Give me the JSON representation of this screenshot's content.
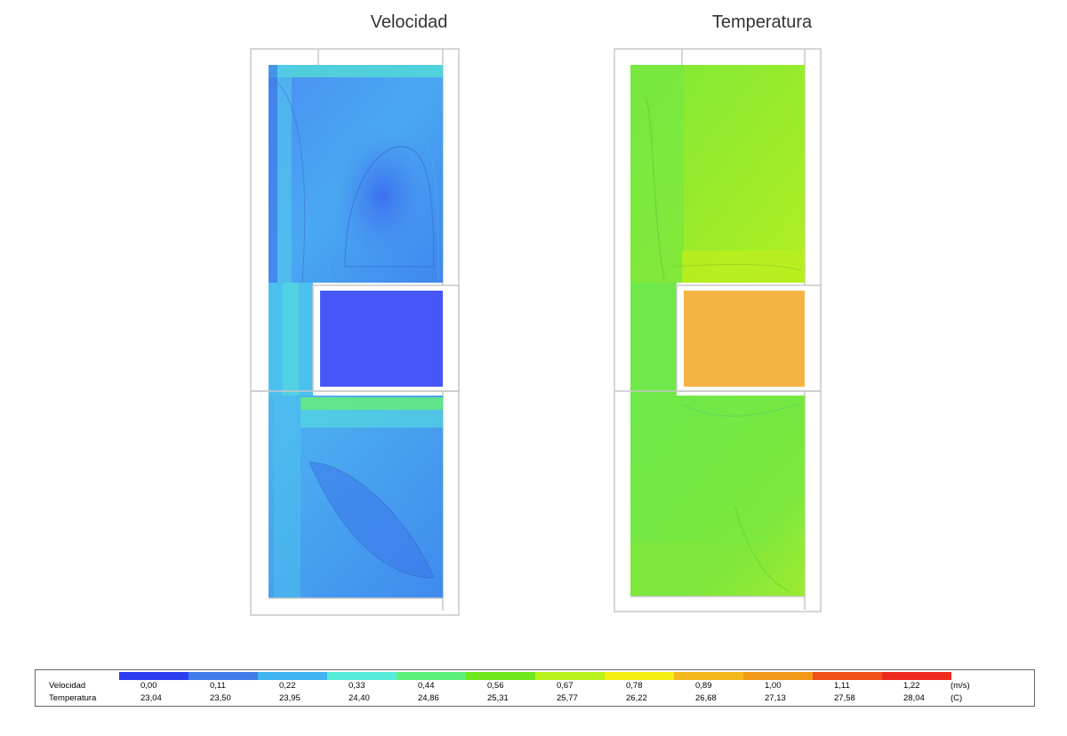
{
  "panels": {
    "velocity_title": "Velocidad",
    "temperature_title": "Temperatura"
  },
  "chart_data": {
    "type": "heatmap",
    "legend": {
      "colors": [
        "#2a3ef0",
        "#3f7ee8",
        "#41b3f0",
        "#57ecda",
        "#5cf07a",
        "#6ee81c",
        "#b8f21a",
        "#f5ee12",
        "#f5b81c",
        "#f29a18",
        "#f0501a",
        "#ee2a1e"
      ],
      "velocity_label": "Velocidad",
      "temperature_label": "Temperatura",
      "velocity_ticks": [
        "0,00",
        "0,11",
        "0,22",
        "0,33",
        "0,44",
        "0,56",
        "0,67",
        "0,78",
        "0,89",
        "1,00",
        "1,11",
        "1,22"
      ],
      "temperature_ticks": [
        "23,04",
        "23,50",
        "23,95",
        "24,40",
        "24,86",
        "25,31",
        "25,77",
        "26,22",
        "26,68",
        "27,13",
        "27,58",
        "28,04"
      ],
      "velocity_unit": "(m/s)",
      "temperature_unit": "(C)"
    }
  }
}
